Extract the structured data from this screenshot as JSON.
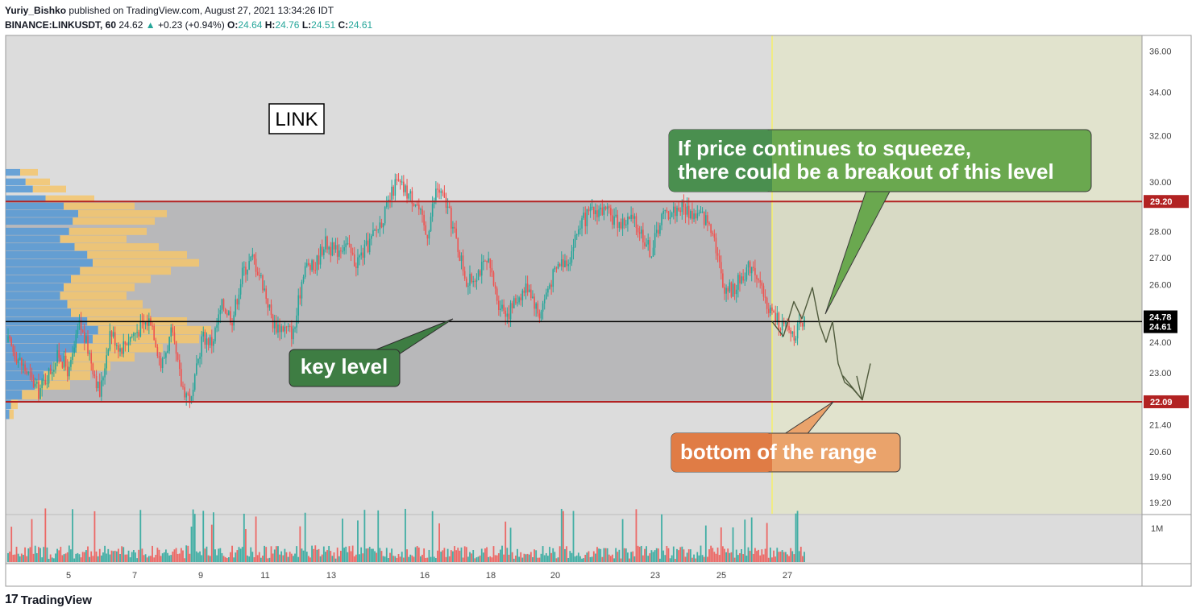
{
  "header": {
    "author": "Yuriy_Bishko",
    "published": "published on TradingView.com, August 27, 2021 13:34:26 IDT",
    "symbol": "BINANCE:LINKUSDT, 60",
    "last": "24.62",
    "change_arrow": "▲",
    "change": "+0.23 (+0.94%)",
    "o_label": "O:",
    "o_value": "24.64",
    "h_label": "H:",
    "h_value": "24.76",
    "l_label": "L:",
    "l_value": "24.51",
    "c_label": "C:",
    "c_value": "24.61"
  },
  "footer": {
    "logo": "17",
    "brand": "TradingView"
  },
  "chart_data": {
    "type": "candlestick",
    "symbol_label": "LINK",
    "y_axis": {
      "scale": "log",
      "ticks": [
        "36.00",
        "34.00",
        "32.00",
        "30.00",
        "28.00",
        "27.00",
        "26.00",
        "24.00",
        "23.00",
        "21.40",
        "20.60",
        "19.90",
        "19.20"
      ],
      "ylim": [
        18.9,
        36.8
      ]
    },
    "x_axis": {
      "ticks": [
        "5",
        "7",
        "9",
        "11",
        "13",
        "16",
        "18",
        "20",
        "23",
        "25",
        "27"
      ]
    },
    "volume_axis": {
      "ticks": [
        "1M"
      ]
    },
    "levels": [
      {
        "name": "range_top",
        "value": 29.2,
        "label": "29.20",
        "color": "#b22222"
      },
      {
        "name": "key_level",
        "value": 24.7,
        "color": "#000000"
      },
      {
        "name": "range_bottom",
        "value": 22.09,
        "label": "22.09",
        "color": "#b22222"
      }
    ],
    "price_labels": [
      {
        "value": 24.78,
        "label": "24.78"
      },
      {
        "value": 24.61,
        "label": "24.61"
      }
    ],
    "path": [
      [
        0,
        24.0
      ],
      [
        3,
        22.4
      ],
      [
        5,
        23.6
      ],
      [
        6,
        23.0
      ],
      [
        7,
        24.6
      ],
      [
        8,
        23.6
      ],
      [
        9,
        22.3
      ],
      [
        10,
        24.4
      ],
      [
        11,
        23.8
      ],
      [
        12,
        24.2
      ],
      [
        14,
        24.8
      ],
      [
        15,
        23.2
      ],
      [
        16,
        24.3
      ],
      [
        17,
        22.6
      ],
      [
        18,
        22.1
      ],
      [
        19,
        24.2
      ],
      [
        20,
        24.0
      ],
      [
        21,
        25.3
      ],
      [
        22,
        24.8
      ],
      [
        23,
        26.5
      ],
      [
        24,
        27.0
      ],
      [
        25,
        26.0
      ],
      [
        26,
        24.6
      ],
      [
        27,
        24.5
      ],
      [
        28,
        24.3
      ],
      [
        29,
        26.7
      ],
      [
        30,
        26.6
      ],
      [
        31,
        27.6
      ],
      [
        32,
        27.2
      ],
      [
        33,
        27.6
      ],
      [
        34,
        26.8
      ],
      [
        35,
        27.3
      ],
      [
        36,
        28.0
      ],
      [
        37,
        28.8
      ],
      [
        38,
        30.0
      ],
      [
        39,
        29.6
      ],
      [
        40,
        29.2
      ],
      [
        41,
        27.8
      ],
      [
        42,
        29.8
      ],
      [
        43,
        29.0
      ],
      [
        44,
        27.5
      ],
      [
        45,
        26.0
      ],
      [
        46,
        26.5
      ],
      [
        47,
        26.8
      ],
      [
        48,
        25.4
      ],
      [
        49,
        25.0
      ],
      [
        50,
        25.6
      ],
      [
        51,
        26.0
      ],
      [
        52,
        24.9
      ],
      [
        53,
        26.0
      ],
      [
        54,
        26.8
      ],
      [
        55,
        27.0
      ],
      [
        56,
        28.3
      ],
      [
        57,
        28.7
      ],
      [
        58,
        28.9
      ],
      [
        59,
        28.6
      ],
      [
        60,
        28.3
      ],
      [
        61,
        28.5
      ],
      [
        62,
        28.0
      ],
      [
        63,
        27.2
      ],
      [
        64,
        28.6
      ],
      [
        65,
        28.8
      ],
      [
        66,
        29.0
      ],
      [
        67,
        28.7
      ],
      [
        68,
        28.6
      ],
      [
        69,
        28.2
      ],
      [
        70,
        26.0
      ],
      [
        71,
        25.8
      ],
      [
        72,
        26.4
      ],
      [
        73,
        26.8
      ],
      [
        74,
        25.5
      ],
      [
        75,
        24.9
      ],
      [
        76,
        24.5
      ],
      [
        77,
        24.3
      ],
      [
        78,
        24.6
      ]
    ],
    "volume_max": "1M",
    "annotations": [
      {
        "name": "key-level",
        "text": "key level",
        "color": "#3e7d43"
      },
      {
        "name": "breakout",
        "lines": [
          "If price continues to squeeze,",
          "there could be a breakout of this level"
        ],
        "color": "#6aa84f"
      },
      {
        "name": "bottom",
        "text": "bottom of the range",
        "color": "#e07c45"
      }
    ],
    "forecast_zone_color": "#e3e6c8",
    "colors": {
      "up": "#26a69a",
      "down": "#ef5350",
      "bg": "#dcdcdc",
      "range": "#b8b8ba",
      "vp_blue": "#5b9bd5",
      "vp_orange": "#f5c66c"
    }
  }
}
